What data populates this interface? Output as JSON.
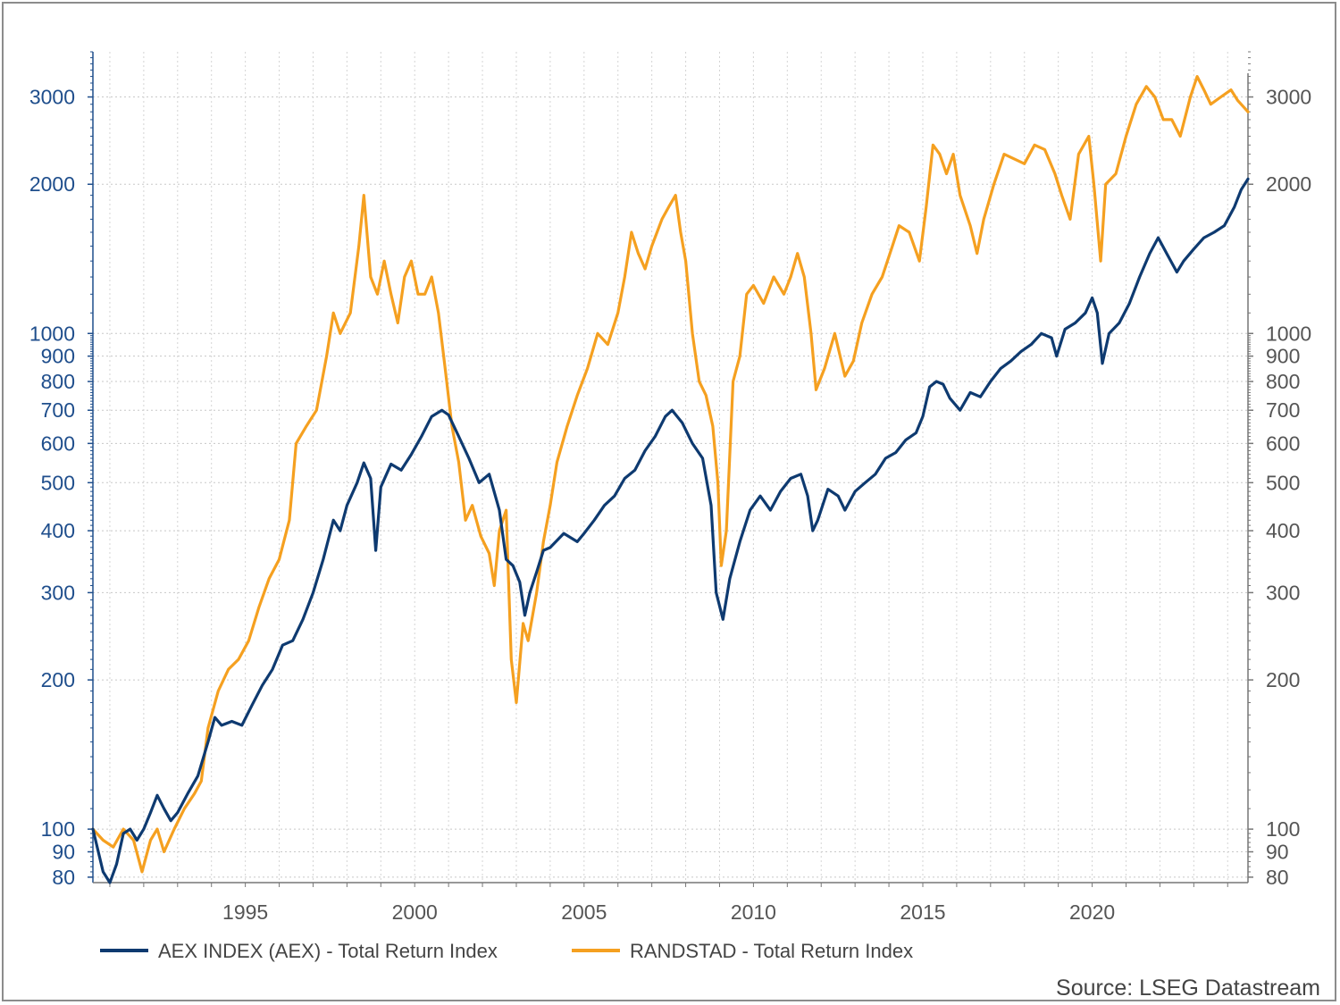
{
  "chart_data": {
    "type": "line",
    "title": "",
    "xlabel": "",
    "ylabel": "",
    "y_scale": "log",
    "grid": true,
    "legend_position": "bottom",
    "xlim": [
      1990.5,
      2024.6
    ],
    "ylim": [
      78,
      3700
    ],
    "x_ticks": [
      {
        "value": 1995,
        "label": "1995"
      },
      {
        "value": 2000,
        "label": "2000"
      },
      {
        "value": 2005,
        "label": "2005"
      },
      {
        "value": 2010,
        "label": "2010"
      },
      {
        "value": 2015,
        "label": "2015"
      },
      {
        "value": 2020,
        "label": "2020"
      }
    ],
    "y_ticks": [
      {
        "value": 80,
        "label": "80"
      },
      {
        "value": 90,
        "label": "90"
      },
      {
        "value": 100,
        "label": "100"
      },
      {
        "value": 200,
        "label": "200"
      },
      {
        "value": 300,
        "label": "300"
      },
      {
        "value": 400,
        "label": "400"
      },
      {
        "value": 500,
        "label": "500"
      },
      {
        "value": 600,
        "label": "600"
      },
      {
        "value": 700,
        "label": "700"
      },
      {
        "value": 800,
        "label": "800"
      },
      {
        "value": 900,
        "label": "900"
      },
      {
        "value": 1000,
        "label": "1000"
      },
      {
        "value": 2000,
        "label": "2000"
      },
      {
        "value": 3000,
        "label": "3000"
      }
    ],
    "series": [
      {
        "name": "AEX INDEX (AEX) - Total Return Index",
        "color": "#0e3a70",
        "points": [
          [
            1990.5,
            100
          ],
          [
            1990.8,
            82
          ],
          [
            1991.0,
            78
          ],
          [
            1991.2,
            85
          ],
          [
            1991.4,
            98
          ],
          [
            1991.6,
            100
          ],
          [
            1991.8,
            95
          ],
          [
            1992.0,
            100
          ],
          [
            1992.2,
            108
          ],
          [
            1992.4,
            117
          ],
          [
            1992.6,
            110
          ],
          [
            1992.8,
            104
          ],
          [
            1993.0,
            108
          ],
          [
            1993.3,
            118
          ],
          [
            1993.6,
            128
          ],
          [
            1993.9,
            150
          ],
          [
            1994.1,
            168
          ],
          [
            1994.3,
            162
          ],
          [
            1994.6,
            165
          ],
          [
            1994.9,
            162
          ],
          [
            1995.2,
            178
          ],
          [
            1995.5,
            195
          ],
          [
            1995.8,
            210
          ],
          [
            1996.1,
            235
          ],
          [
            1996.4,
            240
          ],
          [
            1996.7,
            265
          ],
          [
            1997.0,
            300
          ],
          [
            1997.3,
            350
          ],
          [
            1997.6,
            420
          ],
          [
            1997.8,
            400
          ],
          [
            1998.0,
            450
          ],
          [
            1998.3,
            500
          ],
          [
            1998.5,
            548
          ],
          [
            1998.7,
            510
          ],
          [
            1998.85,
            365
          ],
          [
            1999.0,
            490
          ],
          [
            1999.3,
            545
          ],
          [
            1999.6,
            530
          ],
          [
            1999.9,
            570
          ],
          [
            2000.2,
            620
          ],
          [
            2000.5,
            680
          ],
          [
            2000.8,
            700
          ],
          [
            2001.0,
            685
          ],
          [
            2001.3,
            620
          ],
          [
            2001.6,
            560
          ],
          [
            2001.9,
            500
          ],
          [
            2002.2,
            520
          ],
          [
            2002.5,
            440
          ],
          [
            2002.7,
            350
          ],
          [
            2002.9,
            340
          ],
          [
            2003.1,
            315
          ],
          [
            2003.25,
            270
          ],
          [
            2003.4,
            300
          ],
          [
            2003.6,
            330
          ],
          [
            2003.8,
            365
          ],
          [
            2004.0,
            370
          ],
          [
            2004.4,
            395
          ],
          [
            2004.8,
            380
          ],
          [
            2005.0,
            395
          ],
          [
            2005.3,
            420
          ],
          [
            2005.6,
            450
          ],
          [
            2005.9,
            470
          ],
          [
            2006.2,
            510
          ],
          [
            2006.5,
            530
          ],
          [
            2006.8,
            580
          ],
          [
            2007.1,
            620
          ],
          [
            2007.4,
            680
          ],
          [
            2007.6,
            700
          ],
          [
            2007.9,
            660
          ],
          [
            2008.2,
            600
          ],
          [
            2008.5,
            560
          ],
          [
            2008.75,
            450
          ],
          [
            2008.9,
            300
          ],
          [
            2009.1,
            265
          ],
          [
            2009.3,
            320
          ],
          [
            2009.6,
            380
          ],
          [
            2009.9,
            440
          ],
          [
            2010.2,
            470
          ],
          [
            2010.5,
            440
          ],
          [
            2010.8,
            480
          ],
          [
            2011.1,
            510
          ],
          [
            2011.4,
            520
          ],
          [
            2011.6,
            470
          ],
          [
            2011.75,
            400
          ],
          [
            2011.9,
            420
          ],
          [
            2012.2,
            485
          ],
          [
            2012.5,
            470
          ],
          [
            2012.7,
            440
          ],
          [
            2013.0,
            480
          ],
          [
            2013.3,
            500
          ],
          [
            2013.6,
            520
          ],
          [
            2013.9,
            560
          ],
          [
            2014.2,
            575
          ],
          [
            2014.5,
            610
          ],
          [
            2014.8,
            630
          ],
          [
            2015.0,
            680
          ],
          [
            2015.2,
            780
          ],
          [
            2015.4,
            800
          ],
          [
            2015.6,
            790
          ],
          [
            2015.8,
            740
          ],
          [
            2016.1,
            700
          ],
          [
            2016.4,
            760
          ],
          [
            2016.7,
            745
          ],
          [
            2017.0,
            800
          ],
          [
            2017.3,
            850
          ],
          [
            2017.6,
            880
          ],
          [
            2017.9,
            920
          ],
          [
            2018.2,
            950
          ],
          [
            2018.5,
            1000
          ],
          [
            2018.8,
            980
          ],
          [
            2018.95,
            900
          ],
          [
            2019.2,
            1020
          ],
          [
            2019.5,
            1050
          ],
          [
            2019.8,
            1100
          ],
          [
            2020.0,
            1180
          ],
          [
            2020.15,
            1100
          ],
          [
            2020.3,
            870
          ],
          [
            2020.5,
            1000
          ],
          [
            2020.8,
            1050
          ],
          [
            2021.1,
            1150
          ],
          [
            2021.4,
            1300
          ],
          [
            2021.7,
            1450
          ],
          [
            2021.95,
            1560
          ],
          [
            2022.2,
            1450
          ],
          [
            2022.5,
            1330
          ],
          [
            2022.7,
            1400
          ],
          [
            2023.0,
            1480
          ],
          [
            2023.3,
            1560
          ],
          [
            2023.6,
            1600
          ],
          [
            2023.9,
            1650
          ],
          [
            2024.2,
            1800
          ],
          [
            2024.4,
            1950
          ],
          [
            2024.6,
            2050
          ]
        ]
      },
      {
        "name": "RANDSTAD - Total Return Index",
        "color": "#f5a020",
        "points": [
          [
            1990.5,
            100
          ],
          [
            1990.8,
            95
          ],
          [
            1991.1,
            92
          ],
          [
            1991.4,
            100
          ],
          [
            1991.7,
            95
          ],
          [
            1991.95,
            82
          ],
          [
            1992.2,
            95
          ],
          [
            1992.4,
            100
          ],
          [
            1992.6,
            90
          ],
          [
            1992.9,
            100
          ],
          [
            1993.2,
            110
          ],
          [
            1993.5,
            118
          ],
          [
            1993.7,
            125
          ],
          [
            1993.9,
            160
          ],
          [
            1994.2,
            190
          ],
          [
            1994.5,
            210
          ],
          [
            1994.8,
            220
          ],
          [
            1995.1,
            240
          ],
          [
            1995.4,
            280
          ],
          [
            1995.7,
            320
          ],
          [
            1996.0,
            350
          ],
          [
            1996.3,
            420
          ],
          [
            1996.5,
            600
          ],
          [
            1996.8,
            650
          ],
          [
            1997.1,
            700
          ],
          [
            1997.4,
            900
          ],
          [
            1997.6,
            1100
          ],
          [
            1997.8,
            1000
          ],
          [
            1998.1,
            1100
          ],
          [
            1998.35,
            1500
          ],
          [
            1998.5,
            1900
          ],
          [
            1998.7,
            1300
          ],
          [
            1998.9,
            1200
          ],
          [
            1999.1,
            1400
          ],
          [
            1999.3,
            1200
          ],
          [
            1999.5,
            1050
          ],
          [
            1999.7,
            1300
          ],
          [
            1999.9,
            1400
          ],
          [
            2000.1,
            1200
          ],
          [
            2000.3,
            1200
          ],
          [
            2000.5,
            1300
          ],
          [
            2000.7,
            1100
          ],
          [
            2000.9,
            850
          ],
          [
            2001.1,
            650
          ],
          [
            2001.3,
            550
          ],
          [
            2001.5,
            420
          ],
          [
            2001.7,
            450
          ],
          [
            2001.95,
            390
          ],
          [
            2002.2,
            360
          ],
          [
            2002.35,
            310
          ],
          [
            2002.5,
            400
          ],
          [
            2002.7,
            440
          ],
          [
            2002.85,
            220
          ],
          [
            2003.0,
            180
          ],
          [
            2003.2,
            260
          ],
          [
            2003.35,
            240
          ],
          [
            2003.6,
            300
          ],
          [
            2003.8,
            380
          ],
          [
            2004.0,
            450
          ],
          [
            2004.2,
            550
          ],
          [
            2004.5,
            650
          ],
          [
            2004.8,
            750
          ],
          [
            2005.1,
            850
          ],
          [
            2005.4,
            1000
          ],
          [
            2005.7,
            950
          ],
          [
            2006.0,
            1100
          ],
          [
            2006.2,
            1300
          ],
          [
            2006.4,
            1600
          ],
          [
            2006.6,
            1450
          ],
          [
            2006.8,
            1350
          ],
          [
            2007.0,
            1500
          ],
          [
            2007.3,
            1700
          ],
          [
            2007.5,
            1800
          ],
          [
            2007.7,
            1900
          ],
          [
            2007.85,
            1600
          ],
          [
            2008.0,
            1400
          ],
          [
            2008.2,
            1000
          ],
          [
            2008.4,
            800
          ],
          [
            2008.6,
            750
          ],
          [
            2008.8,
            650
          ],
          [
            2008.95,
            500
          ],
          [
            2009.05,
            340
          ],
          [
            2009.2,
            400
          ],
          [
            2009.4,
            800
          ],
          [
            2009.6,
            900
          ],
          [
            2009.8,
            1200
          ],
          [
            2010.0,
            1250
          ],
          [
            2010.3,
            1150
          ],
          [
            2010.6,
            1300
          ],
          [
            2010.9,
            1200
          ],
          [
            2011.1,
            1300
          ],
          [
            2011.3,
            1450
          ],
          [
            2011.5,
            1300
          ],
          [
            2011.7,
            1000
          ],
          [
            2011.85,
            770
          ],
          [
            2012.1,
            850
          ],
          [
            2012.4,
            1000
          ],
          [
            2012.7,
            820
          ],
          [
            2012.95,
            880
          ],
          [
            2013.2,
            1050
          ],
          [
            2013.5,
            1200
          ],
          [
            2013.8,
            1300
          ],
          [
            2014.1,
            1500
          ],
          [
            2014.3,
            1650
          ],
          [
            2014.6,
            1600
          ],
          [
            2014.9,
            1400
          ],
          [
            2015.1,
            1800
          ],
          [
            2015.3,
            2400
          ],
          [
            2015.5,
            2300
          ],
          [
            2015.7,
            2100
          ],
          [
            2015.9,
            2300
          ],
          [
            2016.1,
            1900
          ],
          [
            2016.4,
            1650
          ],
          [
            2016.6,
            1450
          ],
          [
            2016.8,
            1700
          ],
          [
            2017.1,
            2000
          ],
          [
            2017.4,
            2300
          ],
          [
            2017.7,
            2250
          ],
          [
            2018.0,
            2200
          ],
          [
            2018.3,
            2400
          ],
          [
            2018.6,
            2350
          ],
          [
            2018.9,
            2100
          ],
          [
            2019.1,
            1900
          ],
          [
            2019.35,
            1700
          ],
          [
            2019.6,
            2300
          ],
          [
            2019.9,
            2500
          ],
          [
            2020.05,
            2000
          ],
          [
            2020.25,
            1400
          ],
          [
            2020.4,
            2000
          ],
          [
            2020.7,
            2100
          ],
          [
            2021.0,
            2500
          ],
          [
            2021.3,
            2900
          ],
          [
            2021.6,
            3150
          ],
          [
            2021.85,
            3000
          ],
          [
            2022.1,
            2700
          ],
          [
            2022.35,
            2700
          ],
          [
            2022.6,
            2500
          ],
          [
            2022.9,
            3000
          ],
          [
            2023.1,
            3300
          ],
          [
            2023.3,
            3100
          ],
          [
            2023.5,
            2900
          ],
          [
            2023.8,
            3000
          ],
          [
            2024.1,
            3100
          ],
          [
            2024.3,
            2950
          ],
          [
            2024.6,
            2800
          ]
        ]
      }
    ]
  },
  "legend": {
    "items": [
      {
        "label": "AEX INDEX (AEX) - Total Return Index",
        "color": "#0e3a70"
      },
      {
        "label": "RANDSTAD - Total Return Index",
        "color": "#f5a020"
      }
    ]
  },
  "source": "Source: LSEG Datastream"
}
